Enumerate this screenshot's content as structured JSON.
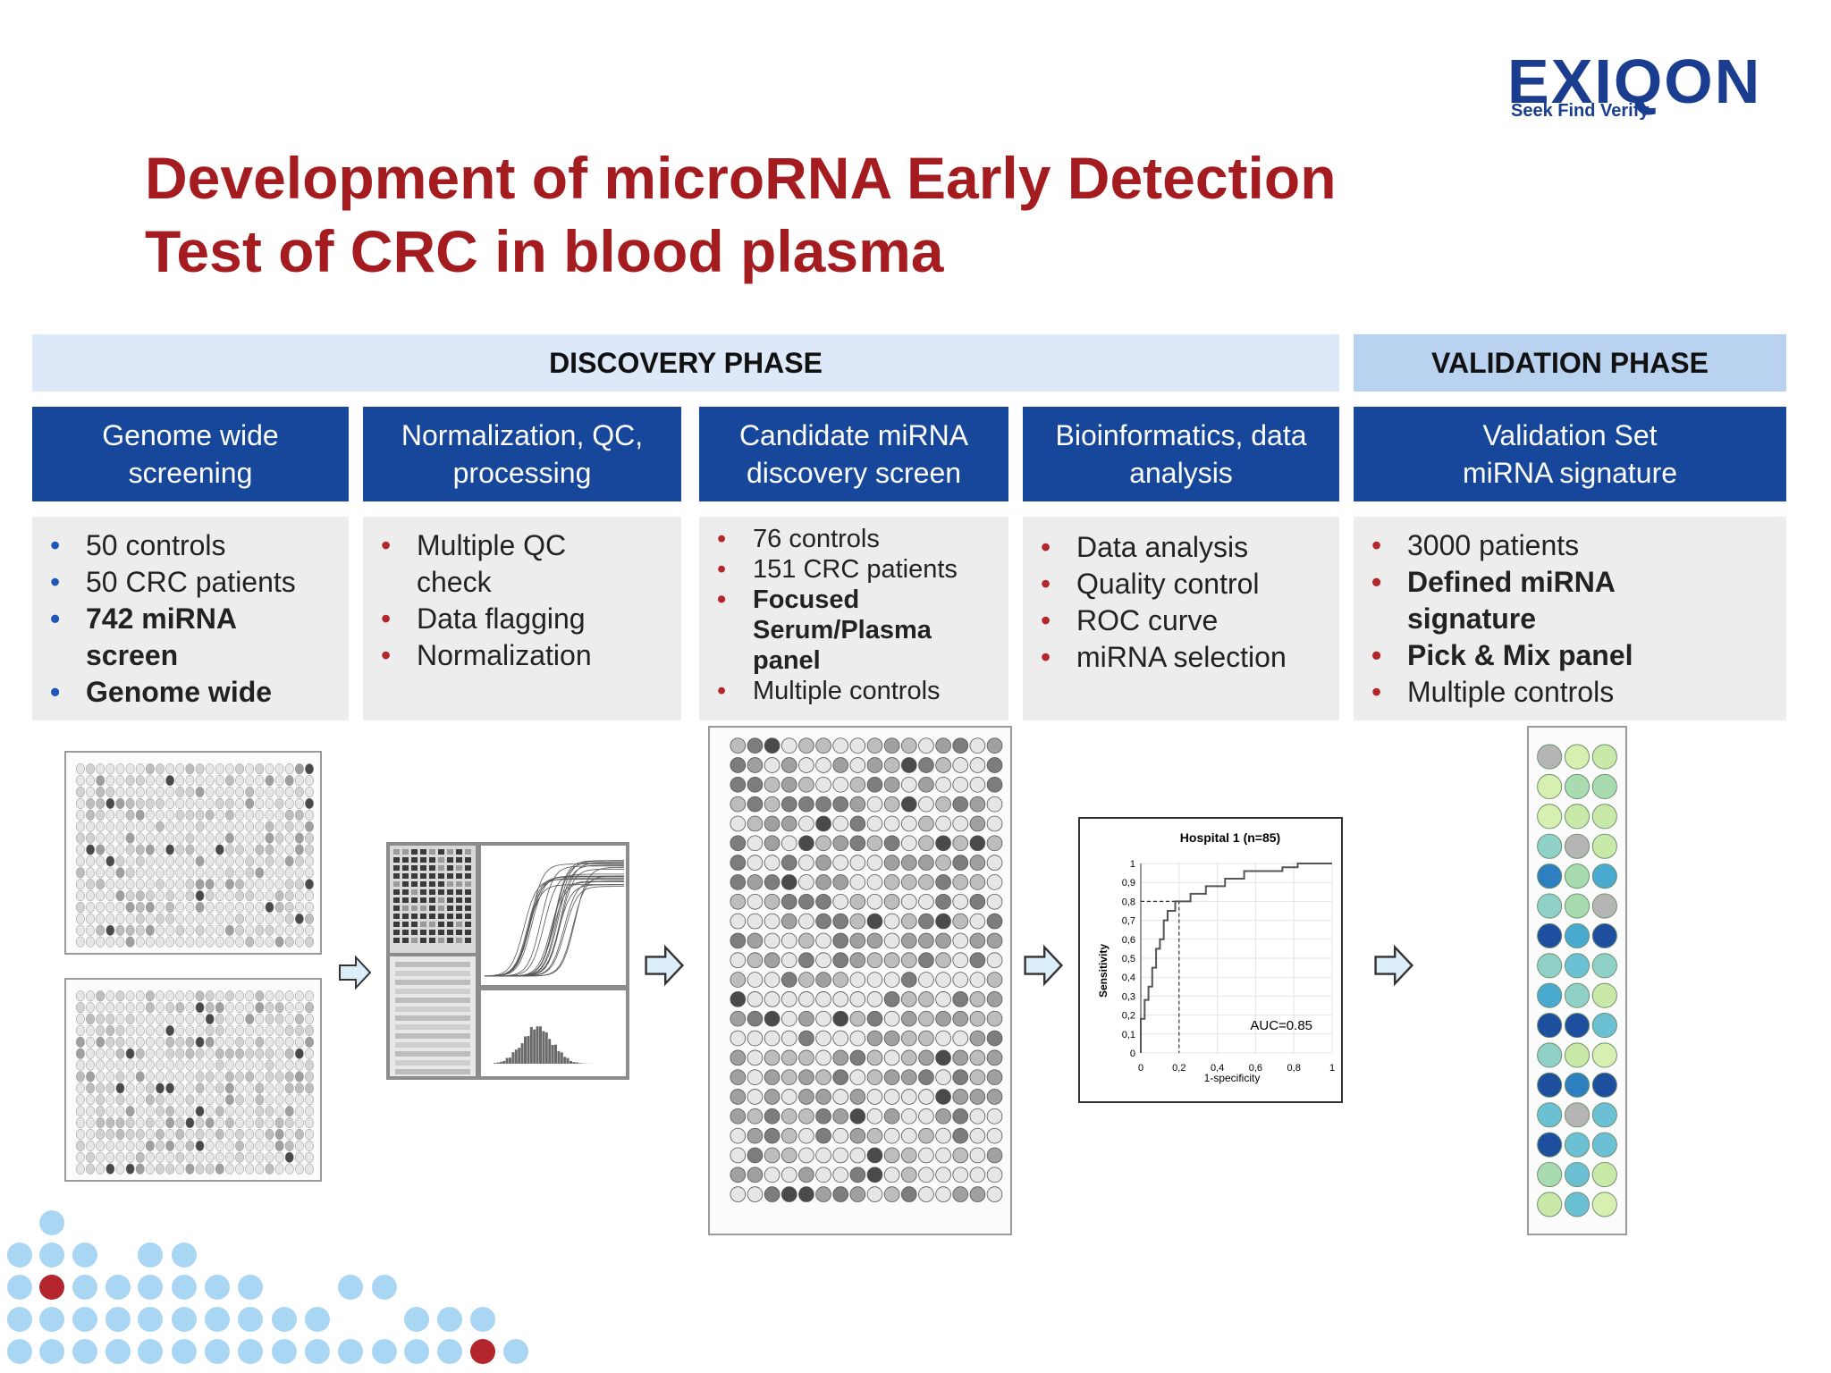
{
  "logo": {
    "name": "EXIQON",
    "tagline": "Seek Find Verify",
    "color": "#1a3d8f"
  },
  "title": {
    "line1": "Development of microRNA Early Detection",
    "line2": "Test of CRC in blood plasma",
    "color": "#a51c20"
  },
  "phases": {
    "discovery": "DISCOVERY PHASE",
    "validation": "VALIDATION PHASE"
  },
  "steps": [
    {
      "header": [
        "Genome wide",
        "screening"
      ]
    },
    {
      "header": [
        "Normalization, QC,",
        "processing"
      ]
    },
    {
      "header": [
        "Candidate miRNA",
        "discovery screen"
      ]
    },
    {
      "header": [
        "Bioinformatics, data",
        "analysis"
      ]
    },
    {
      "header": [
        "Validation Set",
        "miRNA signature"
      ]
    }
  ],
  "bullets": {
    "genome": [
      "50 controls",
      "50 CRC patients",
      "742 miRNA screen",
      "Genome wide"
    ],
    "normalization": [
      "Multiple QC check",
      "Data flagging",
      "Normalization"
    ],
    "candidate": [
      "76 controls",
      "151 CRC patients",
      "Focused Serum/Plasma panel",
      "Multiple controls"
    ],
    "bioinformatics": [
      "Data analysis",
      "Quality control",
      "ROC curve",
      "miRNA selection"
    ],
    "validation": [
      "3000 patients",
      "Defined miRNA signature",
      "Pick & Mix panel",
      "Multiple controls"
    ]
  },
  "roc": {
    "title": "Hospital 1 (n=85)",
    "ylabel": "Sensitivity",
    "xlabel": "1-specificity",
    "auc": "AUC=0.85",
    "yticks": [
      "1",
      "0,9",
      "0,8",
      "0,7",
      "0,6",
      "0,5",
      "0,4",
      "0,3",
      "0,2",
      "0,1",
      "0"
    ],
    "xticks": [
      "0",
      "0,2",
      "0,4",
      "0,6",
      "0,8",
      "1"
    ],
    "curve": [
      [
        0,
        0
      ],
      [
        0,
        0.18
      ],
      [
        0.02,
        0.18
      ],
      [
        0.02,
        0.28
      ],
      [
        0.04,
        0.28
      ],
      [
        0.04,
        0.35
      ],
      [
        0.06,
        0.35
      ],
      [
        0.06,
        0.45
      ],
      [
        0.08,
        0.45
      ],
      [
        0.08,
        0.55
      ],
      [
        0.1,
        0.55
      ],
      [
        0.1,
        0.6
      ],
      [
        0.12,
        0.6
      ],
      [
        0.12,
        0.7
      ],
      [
        0.14,
        0.7
      ],
      [
        0.14,
        0.75
      ],
      [
        0.18,
        0.75
      ],
      [
        0.18,
        0.8
      ],
      [
        0.26,
        0.8
      ],
      [
        0.26,
        0.84
      ],
      [
        0.34,
        0.84
      ],
      [
        0.34,
        0.88
      ],
      [
        0.44,
        0.88
      ],
      [
        0.44,
        0.92
      ],
      [
        0.54,
        0.92
      ],
      [
        0.54,
        0.96
      ],
      [
        0.74,
        0.96
      ],
      [
        0.74,
        0.98
      ],
      [
        0.82,
        0.98
      ],
      [
        0.82,
        1
      ],
      [
        1,
        1
      ]
    ],
    "cutoff": {
      "x": 0.2,
      "y": 0.8
    }
  },
  "colors": {
    "header_blue": "#17479a",
    "dot_blue": "#a9d6f2",
    "dot_red": "#b3262b"
  }
}
